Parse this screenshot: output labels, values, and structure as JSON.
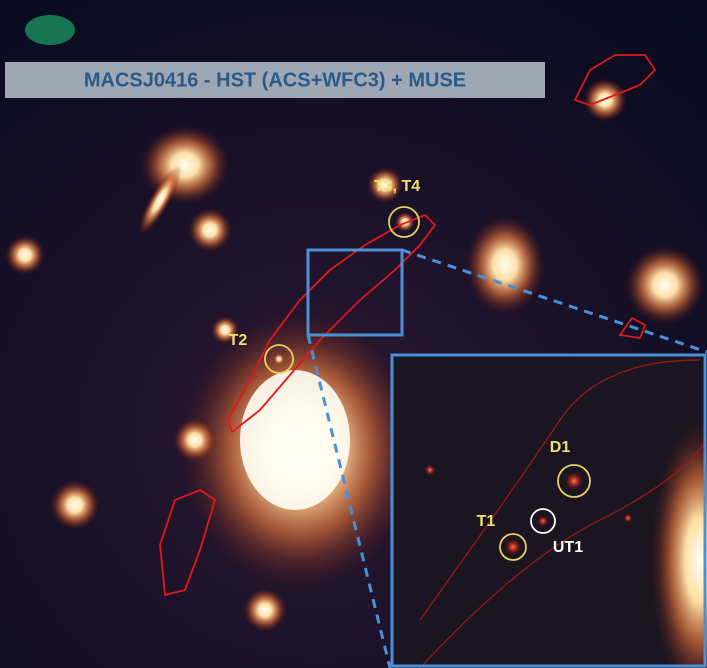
{
  "title": "MACSJ0416 - HST (ACS+WFC3) + MUSE",
  "annotations": [
    "T3, T4",
    "T2"
  ],
  "inset_annotations": [
    "D1",
    "T1",
    "UT1"
  ]
}
